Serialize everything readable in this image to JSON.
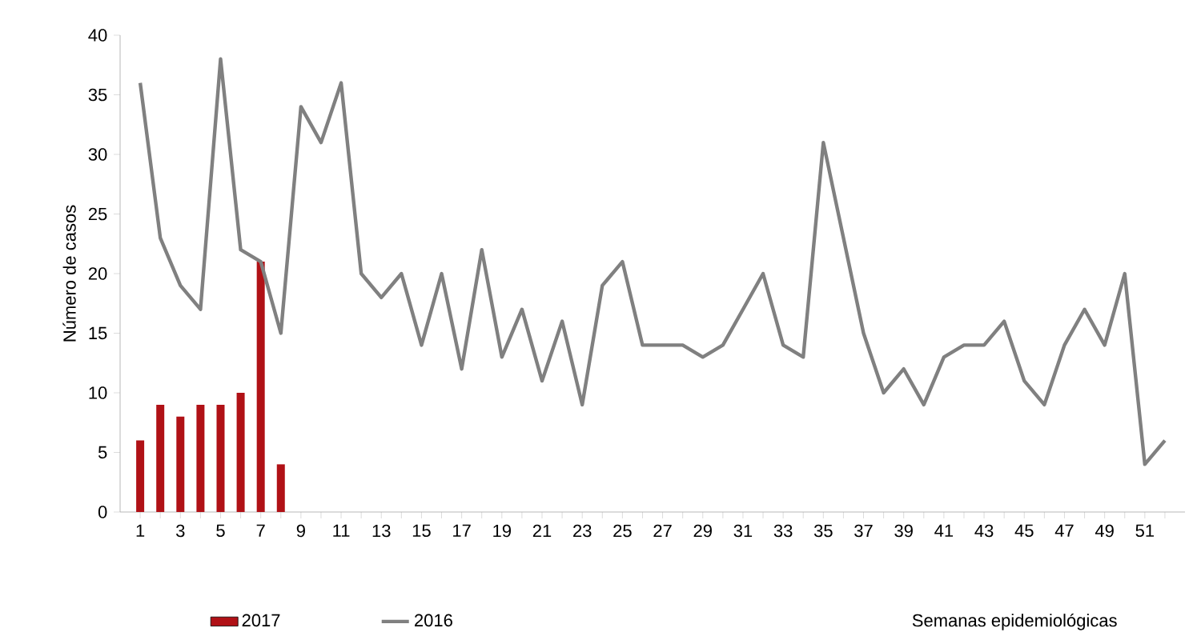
{
  "chart_data": {
    "type": "bar",
    "ylabel": "Número de casos",
    "xlabel": "Semanas epidemiológicas",
    "categories": [
      "1",
      null,
      "3",
      null,
      "5",
      null,
      "7",
      null,
      "9",
      null,
      "11",
      null,
      "13",
      null,
      "15",
      null,
      "17",
      null,
      "19",
      null,
      "21",
      null,
      "23",
      null,
      "25",
      null,
      "27",
      null,
      "29",
      null,
      "31",
      null,
      "33",
      null,
      "35",
      null,
      "37",
      null,
      "39",
      null,
      "41",
      null,
      "43",
      null,
      "45",
      null,
      "47",
      null,
      "49",
      null,
      "51",
      null
    ],
    "series": [
      {
        "name": "2017",
        "color": "#b01116",
        "values": [
          6,
          9,
          8,
          9,
          9,
          10,
          21,
          4,
          null,
          null,
          null,
          null,
          null,
          null,
          null,
          null,
          null,
          null,
          null,
          null,
          null,
          null,
          null,
          null,
          null,
          null,
          null,
          null,
          null,
          null,
          null,
          null,
          null,
          null,
          null,
          null,
          null,
          null,
          null,
          null,
          null,
          null,
          null,
          null,
          null,
          null,
          null,
          null,
          null,
          null,
          null,
          null
        ]
      },
      {
        "name": "2016",
        "type": "line",
        "color": "#808080",
        "values": [
          36,
          23,
          19,
          17,
          38,
          22,
          21,
          15,
          34,
          31,
          36,
          20,
          18,
          20,
          14,
          20,
          12,
          22,
          13,
          17,
          11,
          16,
          9,
          19,
          21,
          14,
          14,
          14,
          13,
          14,
          17,
          20,
          14,
          13,
          31,
          23,
          15,
          10,
          12,
          9,
          13,
          14,
          14,
          16,
          11,
          9,
          14,
          17,
          14,
          20,
          4,
          6
        ]
      }
    ],
    "ylim": [
      0,
      40
    ],
    "yticks": [
      0,
      5,
      10,
      15,
      20,
      25,
      30,
      35,
      40
    ],
    "grid": false,
    "legend": "bottom",
    "marker": "none",
    "line_style": "solid"
  }
}
